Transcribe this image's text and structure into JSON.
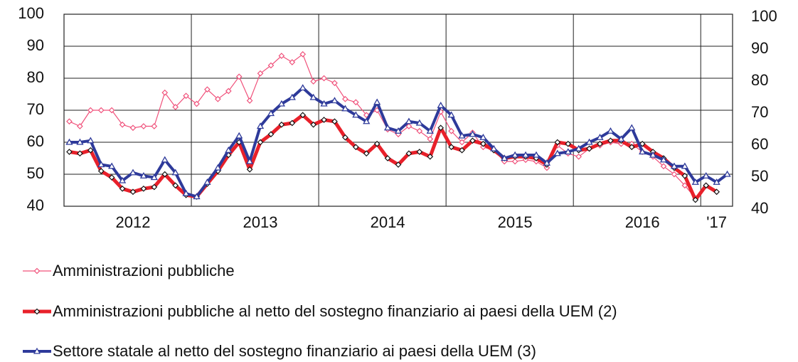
{
  "chart_data": {
    "type": "line",
    "categories": [
      null,
      null,
      null,
      null,
      null,
      null,
      "2012",
      null,
      null,
      null,
      null,
      null,
      null,
      null,
      null,
      null,
      null,
      null,
      "2013",
      null,
      null,
      null,
      null,
      null,
      null,
      null,
      null,
      null,
      null,
      null,
      "2014",
      null,
      null,
      null,
      null,
      null,
      null,
      null,
      null,
      null,
      null,
      null,
      "2015",
      null,
      null,
      null,
      null,
      null,
      null,
      null,
      null,
      null,
      null,
      null,
      "2016",
      null,
      null,
      null,
      null,
      null,
      null,
      "'17",
      null
    ],
    "series": [
      {
        "name": "Amministrazioni pubbliche",
        "color": "#f0507a",
        "marker": "diamond",
        "values": [
          66.5,
          65,
          70,
          70,
          70,
          65.5,
          64.5,
          65,
          65,
          75.5,
          71,
          74.5,
          72,
          76.5,
          73.5,
          76,
          80.5,
          73,
          81.5,
          84,
          87,
          85,
          87.5,
          79,
          80,
          78.5,
          73.5,
          72.5,
          68.5,
          70,
          64,
          62.5,
          65,
          63.5,
          61,
          69.5,
          63.5,
          60,
          63,
          58.5,
          57.5,
          54,
          54,
          54.5,
          54,
          52,
          59,
          56.5,
          55.5,
          58,
          59,
          60,
          59.5,
          59.5,
          57,
          55.5,
          52.5,
          50,
          46.5,
          42.5,
          46.5,
          44.5,
          null
        ]
      },
      {
        "name": "Amministrazioni pubbliche al netto del sostegno finanziario ai paesi della UEM (2)",
        "color": "#e8202a",
        "marker": "diamond",
        "values": [
          57,
          56.5,
          57.5,
          51,
          49,
          45.5,
          44.5,
          45.5,
          46,
          50,
          46.5,
          43.5,
          43,
          47,
          51,
          56,
          60,
          51.5,
          60,
          62.5,
          65.5,
          66,
          68.5,
          65.5,
          67,
          66.5,
          61.5,
          58.5,
          56.5,
          59.5,
          55,
          53,
          56.5,
          57,
          55.5,
          64.5,
          58.5,
          57.5,
          60.5,
          59.5,
          57.5,
          55,
          55.5,
          55.5,
          55,
          53,
          60,
          59.5,
          57.5,
          58,
          59.5,
          60.5,
          60.5,
          58.5,
          59.5,
          57,
          55,
          52,
          49.5,
          42,
          46.5,
          44.5,
          null
        ]
      },
      {
        "name": "Settore statale al netto del sostegno finanziario ai paesi della UEM (3)",
        "color": "#2e3a9a",
        "marker": "triangle",
        "values": [
          60,
          60,
          60.5,
          53,
          52.5,
          48,
          50.5,
          49.5,
          49,
          54.5,
          50.5,
          44,
          43,
          47.5,
          52,
          57.5,
          62,
          54,
          65,
          69,
          72,
          74,
          77,
          74,
          72,
          73,
          70.5,
          68.5,
          66.5,
          72.5,
          64.5,
          63.5,
          66.5,
          66,
          63.5,
          71.5,
          68.5,
          62,
          62.5,
          61.5,
          58,
          55,
          56,
          56,
          56,
          53.5,
          56.5,
          57,
          58,
          60,
          61.5,
          63.5,
          61,
          64.5,
          57,
          56,
          54.5,
          52.5,
          52.5,
          47.5,
          49.5,
          47.5,
          50
        ]
      }
    ],
    "ylim": [
      40,
      100
    ],
    "yticks": [
      40,
      50,
      60,
      70,
      80,
      90,
      100
    ],
    "y2lim": [
      40,
      100
    ],
    "y2ticks": [
      40,
      50,
      60,
      70,
      80,
      90,
      100
    ],
    "grid": true
  }
}
